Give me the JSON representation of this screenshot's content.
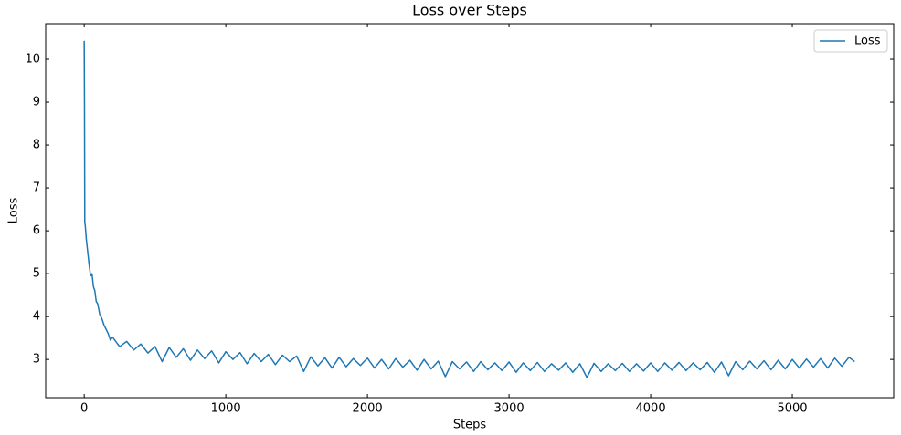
{
  "chart_data": {
    "type": "line",
    "title": "Loss over Steps",
    "x_label": "Steps",
    "y_label": "Loss",
    "xlim": [
      -272,
      5716
    ],
    "ylim": [
      2.11,
      10.83
    ],
    "xticks": [
      0,
      1000,
      2000,
      3000,
      4000,
      5000
    ],
    "yticks": [
      3,
      4,
      5,
      6,
      7,
      8,
      9,
      10
    ],
    "grid": false,
    "legend": "upper right",
    "x": [
      0,
      2,
      4,
      8,
      15,
      25,
      35,
      45,
      55,
      65,
      75,
      85,
      95,
      110,
      125,
      140,
      155,
      170,
      185,
      200,
      250,
      300,
      350,
      400,
      450,
      500,
      550,
      600,
      650,
      700,
      750,
      800,
      850,
      900,
      950,
      1000,
      1050,
      1100,
      1150,
      1200,
      1250,
      1300,
      1350,
      1400,
      1450,
      1500,
      1550,
      1600,
      1650,
      1700,
      1750,
      1800,
      1850,
      1900,
      1950,
      2000,
      2050,
      2100,
      2150,
      2200,
      2250,
      2300,
      2350,
      2400,
      2450,
      2500,
      2550,
      2600,
      2650,
      2700,
      2750,
      2800,
      2850,
      2900,
      2950,
      3000,
      3050,
      3100,
      3150,
      3200,
      3250,
      3300,
      3350,
      3400,
      3450,
      3500,
      3550,
      3600,
      3650,
      3700,
      3750,
      3800,
      3850,
      3900,
      3950,
      4000,
      4050,
      4100,
      4150,
      4200,
      4250,
      4300,
      4350,
      4400,
      4450,
      4500,
      4550,
      4600,
      4650,
      4700,
      4750,
      4800,
      4850,
      4900,
      4950,
      5000,
      5050,
      5100,
      5150,
      5200,
      5250,
      5300,
      5350,
      5400,
      5440
    ],
    "series": [
      {
        "name": "Loss",
        "color": "#1f77b4",
        "values": [
          10.43,
          9.0,
          6.2,
          6.1,
          5.8,
          5.5,
          5.2,
          4.95,
          5.0,
          4.7,
          4.6,
          4.35,
          4.3,
          4.05,
          3.95,
          3.8,
          3.7,
          3.6,
          3.45,
          3.52,
          3.3,
          3.42,
          3.22,
          3.36,
          3.15,
          3.3,
          2.95,
          3.28,
          3.05,
          3.25,
          2.98,
          3.22,
          3.02,
          3.2,
          2.92,
          3.18,
          3.0,
          3.16,
          2.9,
          3.14,
          2.95,
          3.12,
          2.88,
          3.1,
          2.95,
          3.08,
          2.72,
          3.06,
          2.85,
          3.04,
          2.8,
          3.05,
          2.83,
          3.02,
          2.86,
          3.03,
          2.8,
          3.0,
          2.78,
          3.02,
          2.82,
          2.98,
          2.75,
          3.0,
          2.78,
          2.96,
          2.6,
          2.95,
          2.78,
          2.94,
          2.72,
          2.95,
          2.76,
          2.92,
          2.74,
          2.94,
          2.7,
          2.92,
          2.74,
          2.93,
          2.72,
          2.9,
          2.75,
          2.92,
          2.7,
          2.9,
          2.58,
          2.91,
          2.72,
          2.9,
          2.74,
          2.91,
          2.72,
          2.9,
          2.73,
          2.92,
          2.72,
          2.92,
          2.75,
          2.93,
          2.74,
          2.92,
          2.76,
          2.93,
          2.7,
          2.94,
          2.62,
          2.95,
          2.76,
          2.96,
          2.78,
          2.97,
          2.76,
          2.98,
          2.78,
          3.0,
          2.8,
          3.01,
          2.82,
          3.02,
          2.8,
          3.03,
          2.84,
          3.05,
          2.95
        ]
      }
    ]
  }
}
